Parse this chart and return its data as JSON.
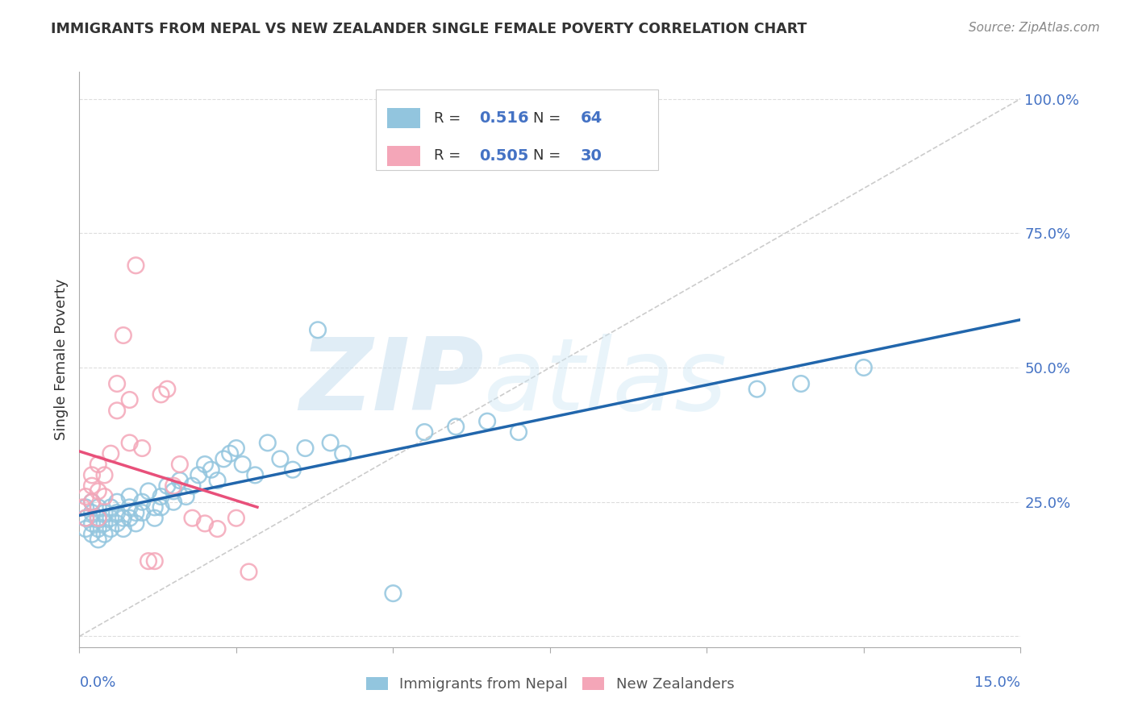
{
  "title": "IMMIGRANTS FROM NEPAL VS NEW ZEALANDER SINGLE FEMALE POVERTY CORRELATION CHART",
  "source": "Source: ZipAtlas.com",
  "ylabel": "Single Female Poverty",
  "xlim": [
    0.0,
    0.15
  ],
  "ylim": [
    -0.02,
    1.05
  ],
  "legend_blue_r": "0.516",
  "legend_blue_n": "64",
  "legend_pink_r": "0.505",
  "legend_pink_n": "30",
  "legend_label_blue": "Immigrants from Nepal",
  "legend_label_pink": "New Zealanders",
  "watermark_zip": "ZIP",
  "watermark_atlas": "atlas",
  "blue_color": "#92c5de",
  "blue_edge_color": "#92c5de",
  "pink_color": "#f4a6b8",
  "pink_edge_color": "#f4a6b8",
  "blue_line_color": "#2166ac",
  "pink_line_color": "#e8507a",
  "diag_line_color": "#cccccc",
  "background_color": "#ffffff",
  "grid_color": "#dddddd",
  "ytick_vals": [
    0.0,
    0.25,
    0.5,
    0.75,
    1.0
  ],
  "ytick_labels": [
    "",
    "25.0%",
    "50.0%",
    "75.0%",
    "100.0%"
  ],
  "xtick_vals": [
    0.0,
    0.025,
    0.05,
    0.075,
    0.1,
    0.125,
    0.15
  ],
  "blue_x": [
    0.001,
    0.001,
    0.001,
    0.002,
    0.002,
    0.002,
    0.002,
    0.003,
    0.003,
    0.003,
    0.003,
    0.004,
    0.004,
    0.004,
    0.005,
    0.005,
    0.005,
    0.006,
    0.006,
    0.006,
    0.007,
    0.007,
    0.008,
    0.008,
    0.008,
    0.009,
    0.009,
    0.01,
    0.01,
    0.011,
    0.012,
    0.012,
    0.013,
    0.013,
    0.014,
    0.015,
    0.015,
    0.016,
    0.017,
    0.018,
    0.019,
    0.02,
    0.021,
    0.022,
    0.023,
    0.024,
    0.025,
    0.026,
    0.028,
    0.03,
    0.032,
    0.034,
    0.036,
    0.038,
    0.04,
    0.042,
    0.05,
    0.055,
    0.06,
    0.065,
    0.07,
    0.108,
    0.115,
    0.125
  ],
  "blue_y": [
    0.22,
    0.24,
    0.2,
    0.23,
    0.21,
    0.19,
    0.25,
    0.22,
    0.2,
    0.24,
    0.18,
    0.21,
    0.23,
    0.19,
    0.22,
    0.2,
    0.24,
    0.23,
    0.21,
    0.25,
    0.22,
    0.2,
    0.24,
    0.22,
    0.26,
    0.23,
    0.21,
    0.25,
    0.23,
    0.27,
    0.24,
    0.22,
    0.26,
    0.24,
    0.28,
    0.27,
    0.25,
    0.29,
    0.26,
    0.28,
    0.3,
    0.32,
    0.31,
    0.29,
    0.33,
    0.34,
    0.35,
    0.32,
    0.3,
    0.36,
    0.33,
    0.31,
    0.35,
    0.57,
    0.36,
    0.34,
    0.08,
    0.38,
    0.39,
    0.4,
    0.38,
    0.46,
    0.47,
    0.5
  ],
  "pink_x": [
    0.0005,
    0.001,
    0.001,
    0.002,
    0.002,
    0.002,
    0.003,
    0.003,
    0.003,
    0.004,
    0.004,
    0.005,
    0.006,
    0.006,
    0.007,
    0.008,
    0.008,
    0.009,
    0.01,
    0.011,
    0.012,
    0.013,
    0.014,
    0.015,
    0.016,
    0.018,
    0.02,
    0.022,
    0.025,
    0.027
  ],
  "pink_y": [
    0.24,
    0.22,
    0.26,
    0.28,
    0.3,
    0.25,
    0.27,
    0.22,
    0.32,
    0.26,
    0.3,
    0.34,
    0.42,
    0.47,
    0.56,
    0.44,
    0.36,
    0.69,
    0.35,
    0.14,
    0.14,
    0.45,
    0.46,
    0.28,
    0.32,
    0.22,
    0.21,
    0.2,
    0.22,
    0.12
  ]
}
